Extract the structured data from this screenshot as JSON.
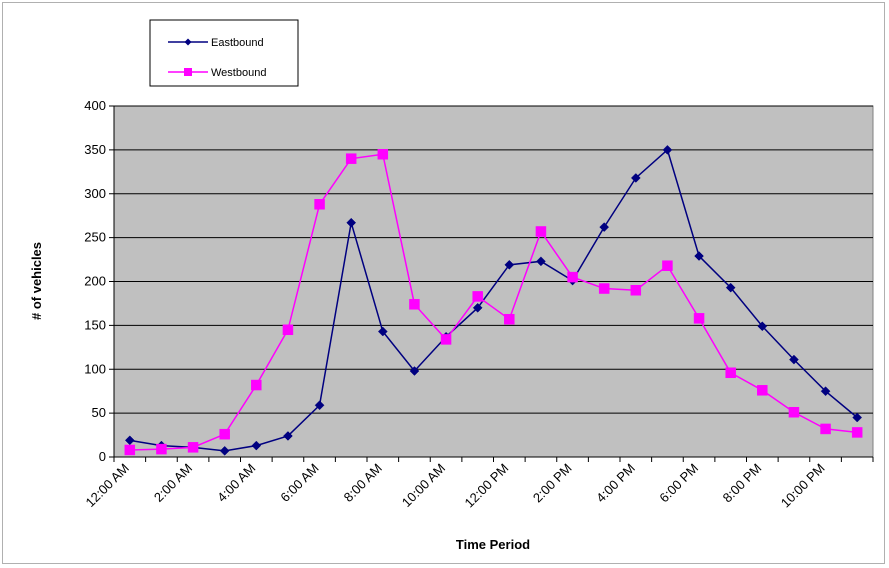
{
  "chart_data": {
    "type": "line",
    "title": "",
    "xlabel": "Time Period",
    "ylabel": "# of vehicles",
    "ylim": [
      0,
      400
    ],
    "yticks": [
      0,
      50,
      100,
      150,
      200,
      250,
      300,
      350,
      400
    ],
    "grid": true,
    "legend_position": "top-left",
    "plot_background": "#c0c0c0",
    "categories": [
      "12:00 AM",
      "1:00 AM",
      "2:00 AM",
      "3:00 AM",
      "4:00 AM",
      "5:00 AM",
      "6:00 AM",
      "7:00 AM",
      "8:00 AM",
      "9:00 AM",
      "10:00 AM",
      "11:00 AM",
      "12:00 PM",
      "1:00 PM",
      "2:00 PM",
      "3:00 PM",
      "4:00 PM",
      "5:00 PM",
      "6:00 PM",
      "7:00 PM",
      "8:00 PM",
      "9:00 PM",
      "10:00 PM",
      "11:00 PM"
    ],
    "tick_labels": [
      "12:00 AM",
      "2:00 AM",
      "4:00 AM",
      "6:00 AM",
      "8:00 AM",
      "10:00 AM",
      "12:00 PM",
      "2:00 PM",
      "4:00 PM",
      "6:00 PM",
      "8:00 PM",
      "10:00 PM"
    ],
    "series": [
      {
        "name": "Eastbound",
        "color": "#000080",
        "marker": "diamond",
        "values": [
          19,
          13,
          11,
          7,
          13,
          24,
          59,
          267,
          143,
          98,
          137,
          170,
          219,
          223,
          201,
          262,
          318,
          350,
          229,
          193,
          149,
          111,
          75,
          45
        ]
      },
      {
        "name": "Westbound",
        "color": "#ff00ff",
        "marker": "square",
        "values": [
          8,
          9,
          11,
          26,
          82,
          145,
          288,
          340,
          345,
          174,
          134,
          183,
          157,
          257,
          205,
          192,
          190,
          218,
          158,
          96,
          76,
          51,
          32,
          28
        ]
      }
    ]
  }
}
